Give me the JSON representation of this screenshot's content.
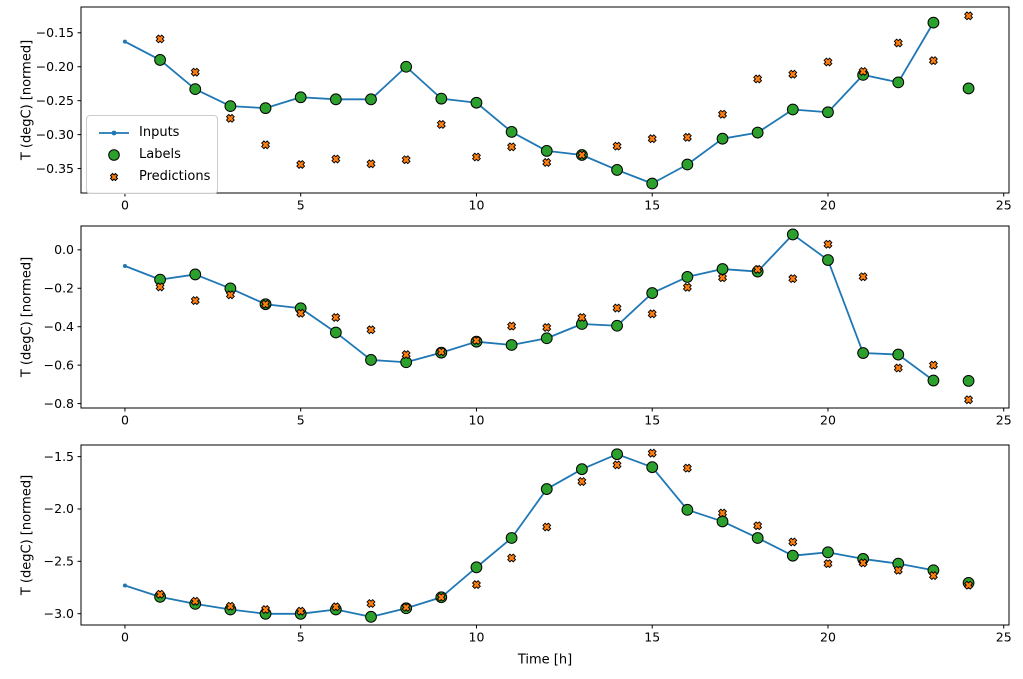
{
  "xlabel": "Time [h]",
  "ylabel": "T (degC) [normed]",
  "legend": {
    "position": "upper-left-area of first subplot",
    "items": [
      {
        "label": "Inputs",
        "marker": "line-with-dot",
        "color": "#1f77b4"
      },
      {
        "label": "Labels",
        "marker": "circle",
        "color": "#2ca02c"
      },
      {
        "label": "Predictions",
        "marker": "X",
        "color": "#ff7f0e"
      }
    ]
  },
  "colors": {
    "inputs": "#1f77b4",
    "labels": "#2ca02c",
    "predictions": "#ff7f0e",
    "marker_edge": "#000000",
    "axes": "#000000",
    "legend_border": "#cccccc"
  },
  "chart_data": [
    {
      "type": "line",
      "subtype": "line+scatter",
      "title": "",
      "ylabel": "T (degC) [normed]",
      "xlabel": "",
      "grid": false,
      "xlim": [
        -1.25,
        25.15
      ],
      "ylim": [
        -0.386,
        -0.112
      ],
      "xticks": [
        0,
        5,
        10,
        15,
        20,
        25
      ],
      "xtick_labels": [
        "0",
        "5",
        "10",
        "15",
        "20",
        "25"
      ],
      "yticks": [
        -0.15,
        -0.2,
        -0.25,
        -0.3,
        -0.35
      ],
      "ytick_labels": [
        "−0.15",
        "−0.20",
        "−0.25",
        "−0.30",
        "−0.35"
      ],
      "series": [
        {
          "name": "Inputs",
          "type": "line",
          "marker": "dot",
          "color": "#1f77b4",
          "x": [
            0,
            1,
            2,
            3,
            4,
            5,
            6,
            7,
            8,
            9,
            10,
            11,
            12,
            13,
            14,
            15,
            16,
            17,
            18,
            19,
            20,
            21,
            22,
            23
          ],
          "y": [
            -0.163,
            -0.19,
            -0.233,
            -0.258,
            -0.261,
            -0.245,
            -0.248,
            -0.248,
            -0.2,
            -0.247,
            -0.253,
            -0.296,
            -0.324,
            -0.33,
            -0.352,
            -0.372,
            -0.344,
            -0.306,
            -0.297,
            -0.263,
            -0.267,
            -0.212,
            -0.223,
            -0.135
          ]
        },
        {
          "name": "Labels",
          "type": "scatter",
          "marker": "circle",
          "color": "#2ca02c",
          "x": [
            1,
            2,
            3,
            4,
            5,
            6,
            7,
            8,
            9,
            10,
            11,
            12,
            13,
            14,
            15,
            16,
            17,
            18,
            19,
            20,
            21,
            22,
            23,
            24
          ],
          "y": [
            -0.19,
            -0.233,
            -0.258,
            -0.261,
            -0.245,
            -0.248,
            -0.248,
            -0.2,
            -0.247,
            -0.253,
            -0.296,
            -0.324,
            -0.33,
            -0.352,
            -0.372,
            -0.344,
            -0.306,
            -0.297,
            -0.263,
            -0.267,
            -0.212,
            -0.223,
            -0.135,
            -0.232
          ]
        },
        {
          "name": "Predictions",
          "type": "scatter",
          "marker": "X",
          "color": "#ff7f0e",
          "x": [
            1,
            2,
            3,
            4,
            5,
            6,
            7,
            8,
            9,
            10,
            11,
            12,
            13,
            14,
            15,
            16,
            17,
            18,
            19,
            20,
            21,
            22,
            23,
            24
          ],
          "y": [
            -0.159,
            -0.208,
            -0.276,
            -0.315,
            -0.344,
            -0.336,
            -0.343,
            -0.337,
            -0.285,
            -0.333,
            -0.318,
            -0.341,
            -0.33,
            -0.317,
            -0.306,
            -0.304,
            -0.27,
            -0.218,
            -0.211,
            -0.193,
            -0.207,
            -0.165,
            -0.191,
            -0.125
          ]
        }
      ]
    },
    {
      "type": "line",
      "subtype": "line+scatter",
      "title": "",
      "ylabel": "T (degC) [normed]",
      "xlabel": "",
      "grid": false,
      "xlim": [
        -1.25,
        25.15
      ],
      "ylim": [
        -0.823,
        0.124
      ],
      "xticks": [
        0,
        5,
        10,
        15,
        20,
        25
      ],
      "xtick_labels": [
        "0",
        "5",
        "10",
        "15",
        "20",
        "25"
      ],
      "yticks": [
        0.0,
        -0.2,
        -0.4,
        -0.6,
        -0.8
      ],
      "ytick_labels": [
        "0.0",
        "−0.2",
        "−0.4",
        "−0.6",
        "−0.8"
      ],
      "series": [
        {
          "name": "Inputs",
          "type": "line",
          "marker": "dot",
          "color": "#1f77b4",
          "x": [
            0,
            1,
            2,
            3,
            4,
            5,
            6,
            7,
            8,
            9,
            10,
            11,
            12,
            13,
            14,
            15,
            16,
            17,
            18,
            19,
            20,
            21,
            22,
            23
          ],
          "y": [
            -0.084,
            -0.155,
            -0.128,
            -0.201,
            -0.283,
            -0.304,
            -0.43,
            -0.573,
            -0.585,
            -0.535,
            -0.478,
            -0.495,
            -0.46,
            -0.386,
            -0.395,
            -0.225,
            -0.141,
            -0.1,
            -0.113,
            0.08,
            -0.053,
            -0.537,
            -0.545,
            -0.68
          ]
        },
        {
          "name": "Labels",
          "type": "scatter",
          "marker": "circle",
          "color": "#2ca02c",
          "x": [
            1,
            2,
            3,
            4,
            5,
            6,
            7,
            8,
            9,
            10,
            11,
            12,
            13,
            14,
            15,
            16,
            17,
            18,
            19,
            20,
            21,
            22,
            23,
            24
          ],
          "y": [
            -0.155,
            -0.128,
            -0.201,
            -0.283,
            -0.304,
            -0.43,
            -0.573,
            -0.585,
            -0.535,
            -0.478,
            -0.495,
            -0.46,
            -0.386,
            -0.395,
            -0.225,
            -0.141,
            -0.1,
            -0.113,
            0.08,
            -0.053,
            -0.537,
            -0.545,
            -0.68,
            -0.682
          ]
        },
        {
          "name": "Predictions",
          "type": "scatter",
          "marker": "X",
          "color": "#ff7f0e",
          "x": [
            1,
            2,
            3,
            4,
            5,
            6,
            7,
            8,
            9,
            10,
            11,
            12,
            13,
            14,
            15,
            16,
            17,
            18,
            19,
            20,
            21,
            22,
            23,
            24
          ],
          "y": [
            -0.193,
            -0.264,
            -0.234,
            -0.283,
            -0.33,
            -0.352,
            -0.416,
            -0.545,
            -0.53,
            -0.472,
            -0.397,
            -0.404,
            -0.352,
            -0.303,
            -0.333,
            -0.195,
            -0.145,
            -0.102,
            -0.15,
            0.029,
            -0.14,
            -0.615,
            -0.6,
            -0.78
          ]
        }
      ]
    },
    {
      "type": "line",
      "subtype": "line+scatter",
      "title": "",
      "ylabel": "T (degC) [normed]",
      "xlabel": "Time [h]",
      "grid": false,
      "xlim": [
        -1.25,
        25.15
      ],
      "ylim": [
        -3.108,
        -1.389
      ],
      "xticks": [
        0,
        5,
        10,
        15,
        20,
        25
      ],
      "xtick_labels": [
        "0",
        "5",
        "10",
        "15",
        "20",
        "25"
      ],
      "yticks": [
        -1.5,
        -2.0,
        -2.5,
        -3.0
      ],
      "ytick_labels": [
        "−1.5",
        "−2.0",
        "−2.5",
        "−3.0"
      ],
      "series": [
        {
          "name": "Inputs",
          "type": "line",
          "marker": "dot",
          "color": "#1f77b4",
          "x": [
            0,
            1,
            2,
            3,
            4,
            5,
            6,
            7,
            8,
            9,
            10,
            11,
            12,
            13,
            14,
            15,
            16,
            17,
            18,
            19,
            20,
            21,
            22,
            23
          ],
          "y": [
            -2.731,
            -2.839,
            -2.906,
            -2.96,
            -3.001,
            -3.001,
            -2.96,
            -3.03,
            -2.948,
            -2.843,
            -2.557,
            -2.277,
            -1.81,
            -1.62,
            -1.477,
            -1.601,
            -2.008,
            -2.119,
            -2.277,
            -2.446,
            -2.414,
            -2.477,
            -2.522,
            -2.585
          ]
        },
        {
          "name": "Labels",
          "type": "scatter",
          "marker": "circle",
          "color": "#2ca02c",
          "x": [
            1,
            2,
            3,
            4,
            5,
            6,
            7,
            8,
            9,
            10,
            11,
            12,
            13,
            14,
            15,
            16,
            17,
            18,
            19,
            20,
            21,
            22,
            23,
            24
          ],
          "y": [
            -2.839,
            -2.906,
            -2.96,
            -3.001,
            -3.001,
            -2.96,
            -3.03,
            -2.948,
            -2.843,
            -2.557,
            -2.277,
            -1.81,
            -1.62,
            -1.477,
            -1.601,
            -2.008,
            -2.119,
            -2.277,
            -2.446,
            -2.414,
            -2.477,
            -2.522,
            -2.585,
            -2.706
          ]
        },
        {
          "name": "Predictions",
          "type": "scatter",
          "marker": "X",
          "color": "#ff7f0e",
          "x": [
            1,
            2,
            3,
            4,
            5,
            6,
            7,
            8,
            9,
            10,
            11,
            12,
            13,
            14,
            15,
            16,
            17,
            18,
            19,
            20,
            21,
            22,
            23,
            24
          ],
          "y": [
            -2.814,
            -2.881,
            -2.929,
            -2.96,
            -2.976,
            -2.934,
            -2.903,
            -2.94,
            -2.843,
            -2.722,
            -2.468,
            -2.172,
            -1.738,
            -1.579,
            -1.467,
            -1.61,
            -2.039,
            -2.16,
            -2.315,
            -2.522,
            -2.515,
            -2.585,
            -2.636,
            -2.728
          ]
        }
      ]
    }
  ]
}
